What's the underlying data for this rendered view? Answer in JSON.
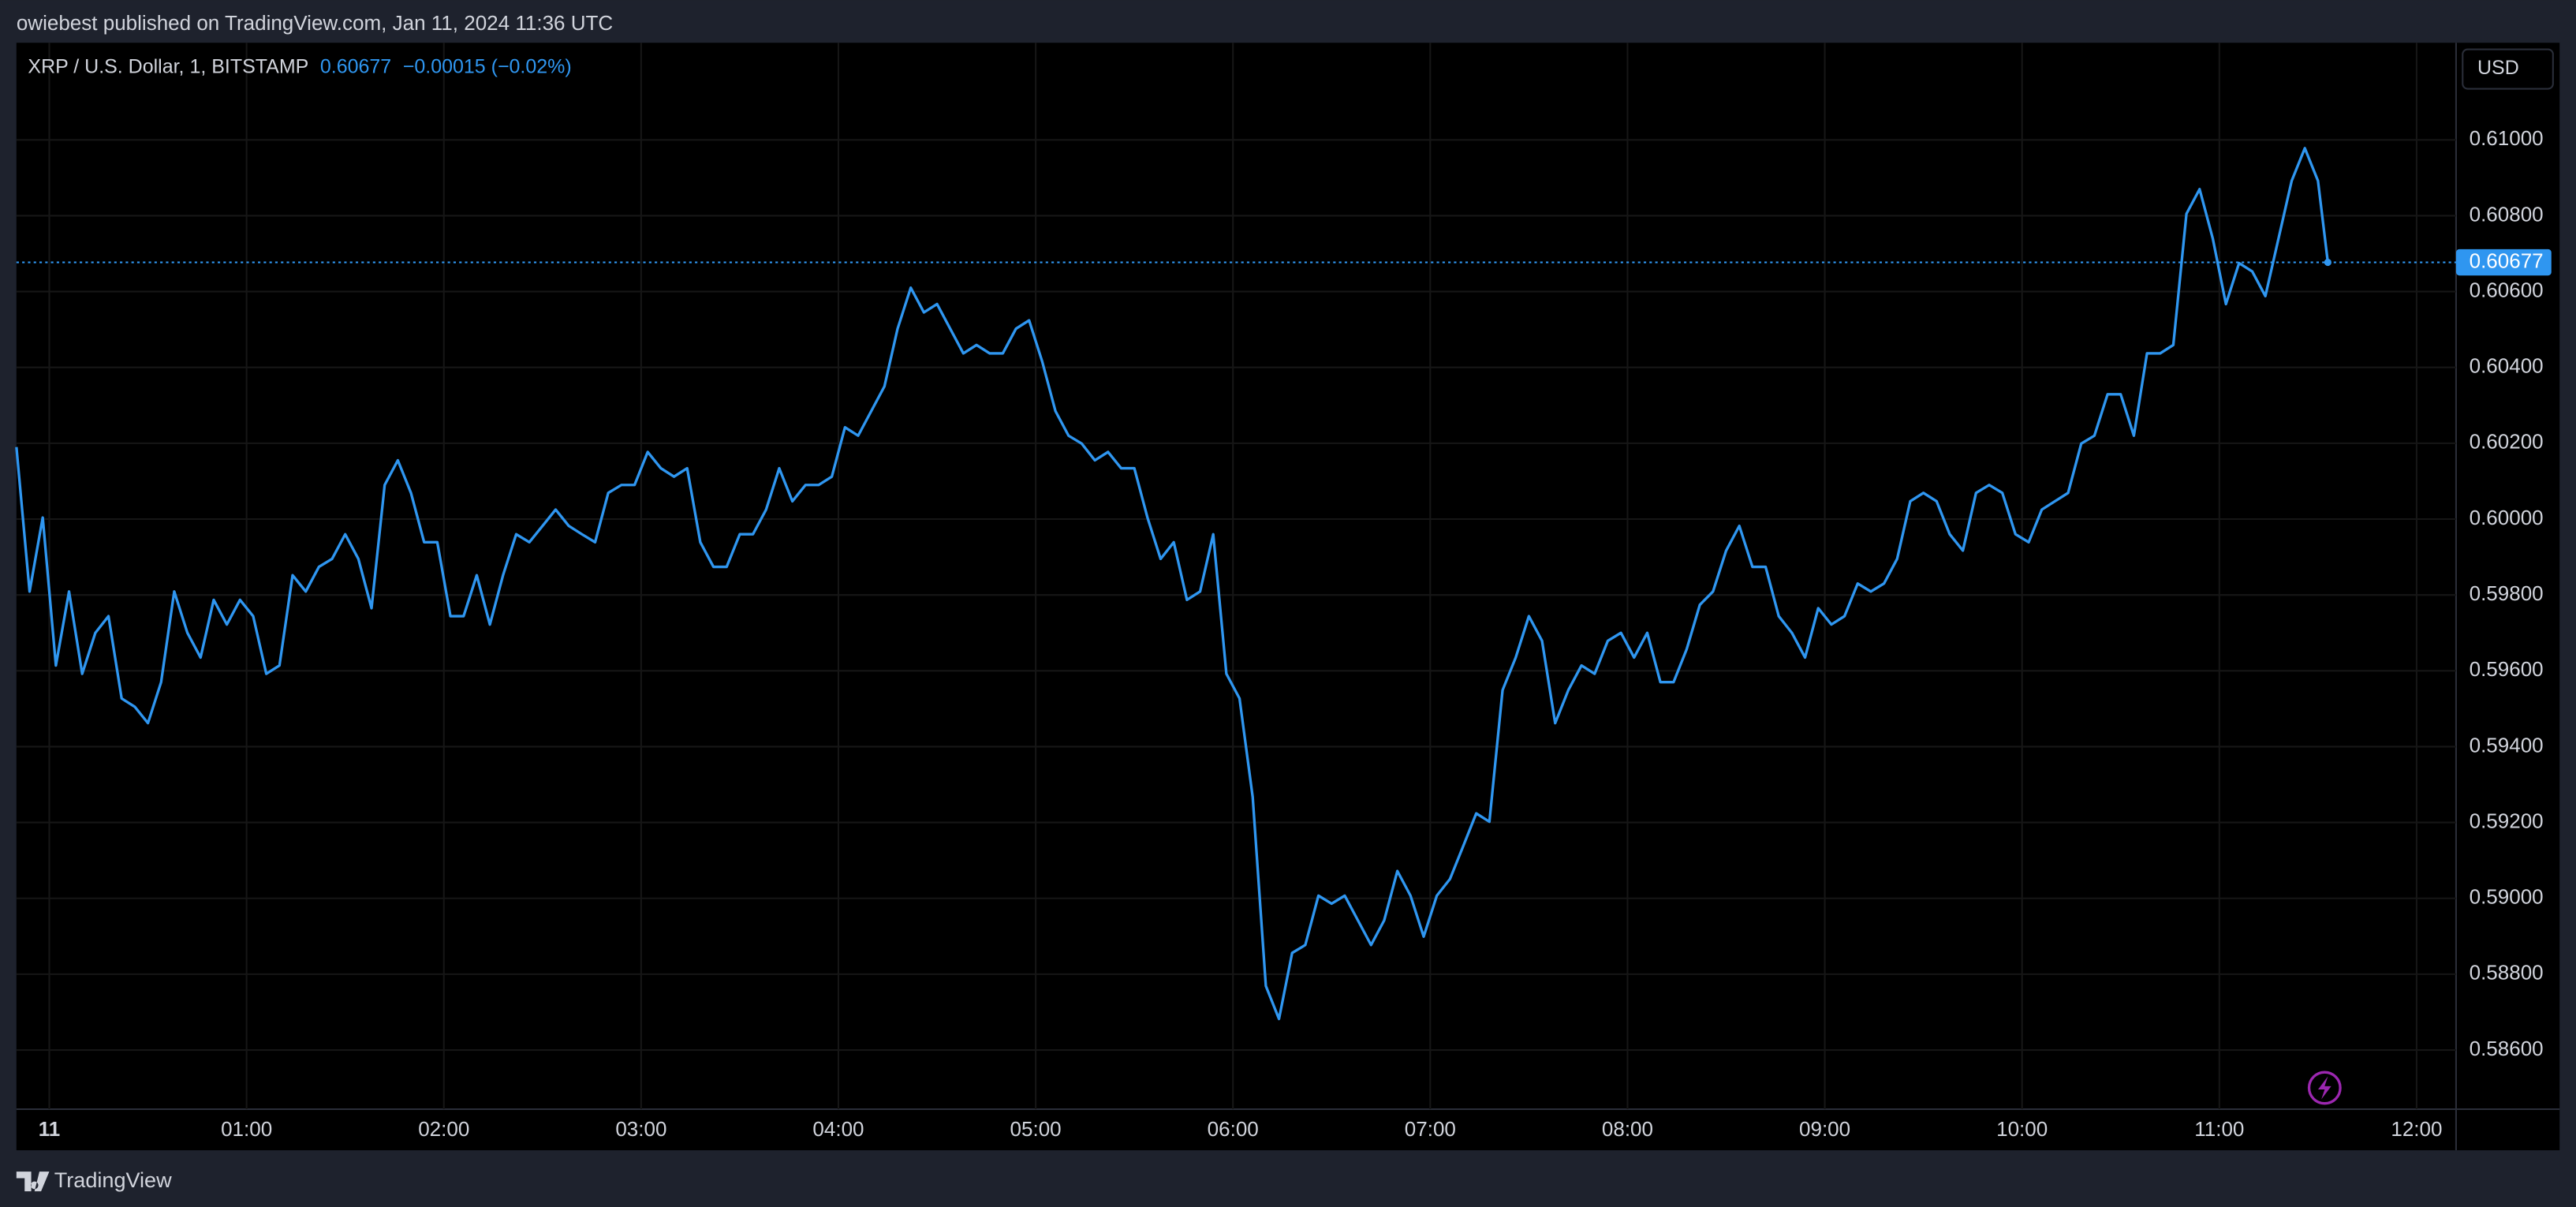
{
  "header": {
    "title": "owiebest published on TradingView.com, Jan 11, 2024 11:36 UTC"
  },
  "footer": {
    "brand": "TradingView"
  },
  "chart_data": {
    "type": "line",
    "symbol": "XRP / U.S. Dollar, 1, BITSTAMP",
    "last_price": 0.60677,
    "change": "−0.00015 (−0.02%)",
    "currency": "USD",
    "x": [
      -10,
      -6,
      -2,
      2,
      6,
      10,
      14,
      18,
      22,
      26,
      30,
      34,
      38,
      42,
      46,
      50,
      54,
      58,
      62,
      66,
      70,
      74,
      78,
      82,
      86,
      90,
      94,
      98,
      102,
      106,
      110,
      114,
      118,
      122,
      126,
      130,
      134,
      138,
      142,
      146,
      150,
      154,
      158,
      162,
      166,
      170,
      174,
      178,
      182,
      186,
      190,
      194,
      198,
      202,
      206,
      210,
      214,
      218,
      222,
      226,
      230,
      234,
      238,
      242,
      246,
      250,
      254,
      258,
      262,
      266,
      270,
      274,
      278,
      282,
      286,
      290,
      294,
      298,
      302,
      306,
      310,
      314,
      318,
      322,
      326,
      330,
      334,
      338,
      342,
      346,
      350,
      354,
      358,
      362,
      366,
      370,
      374,
      378,
      382,
      386,
      390,
      394,
      398,
      402,
      406,
      410,
      414,
      418,
      422,
      426,
      430,
      434,
      438,
      442,
      446,
      450,
      454,
      458,
      462,
      466,
      470,
      474,
      478,
      482,
      486,
      490,
      494,
      498,
      502,
      506,
      510,
      514,
      518,
      522,
      526,
      530,
      534,
      538,
      542,
      546,
      550,
      554,
      558,
      562,
      566,
      570,
      574,
      578,
      582,
      586,
      590,
      594,
      598,
      602,
      606,
      610,
      614,
      618,
      622,
      626,
      630,
      634,
      638,
      642,
      646,
      650,
      654,
      658,
      662,
      666,
      670,
      674,
      678,
      682,
      686,
      690,
      693
    ],
    "series": [
      {
        "name": "XRP / U.S. Dollar",
        "color": "#2f96f0",
        "values": [
          0.6019,
          0.59809,
          0.60004,
          0.59614,
          0.59809,
          0.59592,
          0.597,
          0.59744,
          0.59527,
          0.59505,
          0.59462,
          0.5957,
          0.59809,
          0.597,
          0.59635,
          0.59787,
          0.59722,
          0.59787,
          0.59744,
          0.59592,
          0.59614,
          0.59852,
          0.59809,
          0.59874,
          0.59895,
          0.5996,
          0.59895,
          0.59765,
          0.6009,
          0.60155,
          0.60069,
          0.59939,
          0.59939,
          0.59744,
          0.59744,
          0.59852,
          0.59722,
          0.59852,
          0.5996,
          0.59939,
          0.59982,
          0.60025,
          0.59982,
          0.5996,
          0.59939,
          0.60069,
          0.6009,
          0.6009,
          0.60177,
          0.60134,
          0.60112,
          0.60134,
          0.59939,
          0.59874,
          0.59874,
          0.5996,
          0.5996,
          0.60025,
          0.60134,
          0.60047,
          0.6009,
          0.6009,
          0.60112,
          0.60242,
          0.6022,
          0.60285,
          0.6035,
          0.60502,
          0.6061,
          0.60545,
          0.60567,
          0.60502,
          0.60437,
          0.60459,
          0.60437,
          0.60437,
          0.60502,
          0.60524,
          0.60415,
          0.60285,
          0.6022,
          0.60199,
          0.60155,
          0.60177,
          0.60134,
          0.60134,
          0.60004,
          0.59895,
          0.59939,
          0.59787,
          0.59809,
          0.5996,
          0.59592,
          0.59527,
          0.59267,
          0.58769,
          0.58682,
          0.58856,
          0.58877,
          0.59007,
          0.58986,
          0.59007,
          0.58942,
          0.58877,
          0.58942,
          0.59072,
          0.59007,
          0.58899,
          0.59007,
          0.59051,
          0.59137,
          0.59224,
          0.59202,
          0.59549,
          0.59635,
          0.59744,
          0.59679,
          0.59462,
          0.59549,
          0.59614,
          0.59592,
          0.59679,
          0.597,
          0.59635,
          0.597,
          0.5957,
          0.5957,
          0.59657,
          0.59774,
          0.59809,
          0.59917,
          0.59982,
          0.59874,
          0.59874,
          0.59744,
          0.597,
          0.59635,
          0.59765,
          0.59722,
          0.59744,
          0.5983,
          0.59809,
          0.5983,
          0.59895,
          0.60047,
          0.60069,
          0.60047,
          0.5996,
          0.59917,
          0.60069,
          0.6009,
          0.60069,
          0.5996,
          0.59939,
          0.60025,
          0.60047,
          0.60069,
          0.60199,
          0.6022,
          0.60329,
          0.60329,
          0.6022,
          0.60437,
          0.60437,
          0.60459,
          0.60805,
          0.6087,
          0.6074,
          0.60567,
          0.60675,
          0.60653,
          0.60588,
          0.6074,
          0.60892,
          0.60978,
          0.60892,
          0.60677
        ]
      }
    ],
    "xlim": [
      -10,
      732
    ],
    "xticks": [
      {
        "value": 0,
        "label": "11"
      },
      {
        "value": 60,
        "label": "01:00"
      },
      {
        "value": 120,
        "label": "02:00"
      },
      {
        "value": 180,
        "label": "03:00"
      },
      {
        "value": 240,
        "label": "04:00"
      },
      {
        "value": 300,
        "label": "05:00"
      },
      {
        "value": 360,
        "label": "06:00"
      },
      {
        "value": 420,
        "label": "07:00"
      },
      {
        "value": 480,
        "label": "08:00"
      },
      {
        "value": 540,
        "label": "09:00"
      },
      {
        "value": 600,
        "label": "10:00"
      },
      {
        "value": 660,
        "label": "11:00"
      },
      {
        "value": 720,
        "label": "12:00"
      }
    ],
    "ylim": [
      0.58444,
      0.61256
    ],
    "yticks": [
      {
        "value": 0.586,
        "label": "0.58600"
      },
      {
        "value": 0.588,
        "label": "0.58800"
      },
      {
        "value": 0.59,
        "label": "0.59000"
      },
      {
        "value": 0.592,
        "label": "0.59200"
      },
      {
        "value": 0.594,
        "label": "0.59400"
      },
      {
        "value": 0.596,
        "label": "0.59600"
      },
      {
        "value": 0.598,
        "label": "0.59800"
      },
      {
        "value": 0.6,
        "label": "0.60000"
      },
      {
        "value": 0.602,
        "label": "0.60200"
      },
      {
        "value": 0.604,
        "label": "0.60400"
      },
      {
        "value": 0.606,
        "label": "0.60600"
      },
      {
        "value": 0.608,
        "label": "0.60800"
      },
      {
        "value": 0.61,
        "label": "0.61000"
      }
    ],
    "grid": true
  }
}
